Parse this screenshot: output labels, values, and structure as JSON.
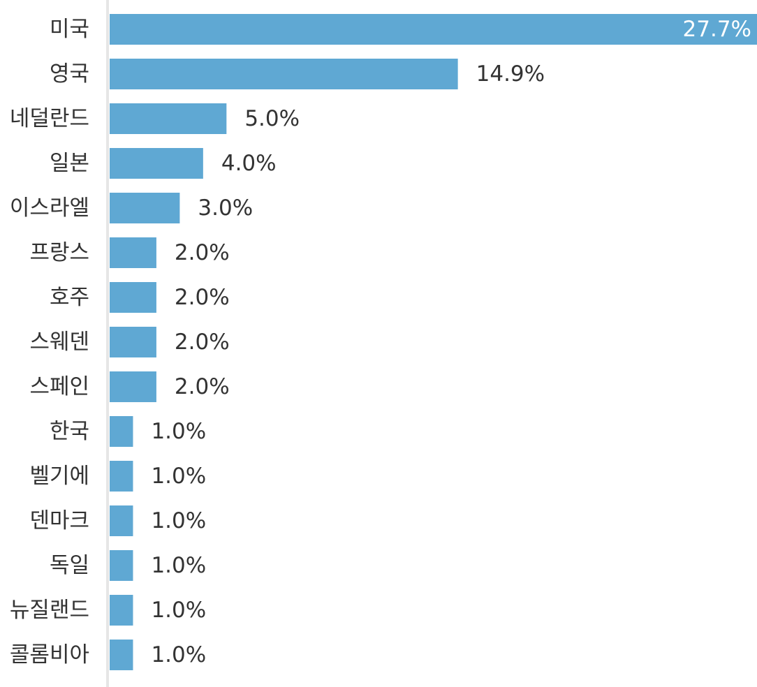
{
  "chart_data": {
    "type": "bar",
    "orientation": "horizontal",
    "categories": [
      "미국",
      "영국",
      "네덜란드",
      "일본",
      "이스라엘",
      "프랑스",
      "호주",
      "스웨덴",
      "스페인",
      "한국",
      "벨기에",
      "덴마크",
      "독일",
      "뉴질랜드",
      "콜롬비아"
    ],
    "values": [
      27.7,
      14.9,
      5.0,
      4.0,
      3.0,
      2.0,
      2.0,
      2.0,
      2.0,
      1.0,
      1.0,
      1.0,
      1.0,
      1.0,
      1.0
    ],
    "value_labels": [
      "27.7%",
      "14.9%",
      "5.0%",
      "4.0%",
      "3.0%",
      "2.0%",
      "2.0%",
      "2.0%",
      "2.0%",
      "1.0%",
      "1.0%",
      "1.0%",
      "1.0%",
      "1.0%",
      "1.0%"
    ],
    "title": "",
    "xlabel": "",
    "ylabel": "",
    "unit": "%",
    "grid": false,
    "legend": "none",
    "colors": {
      "bar": "#5fa8d3",
      "axis": "#e6e6e6",
      "text": "#333333",
      "label_inside": "#ffffff"
    }
  }
}
